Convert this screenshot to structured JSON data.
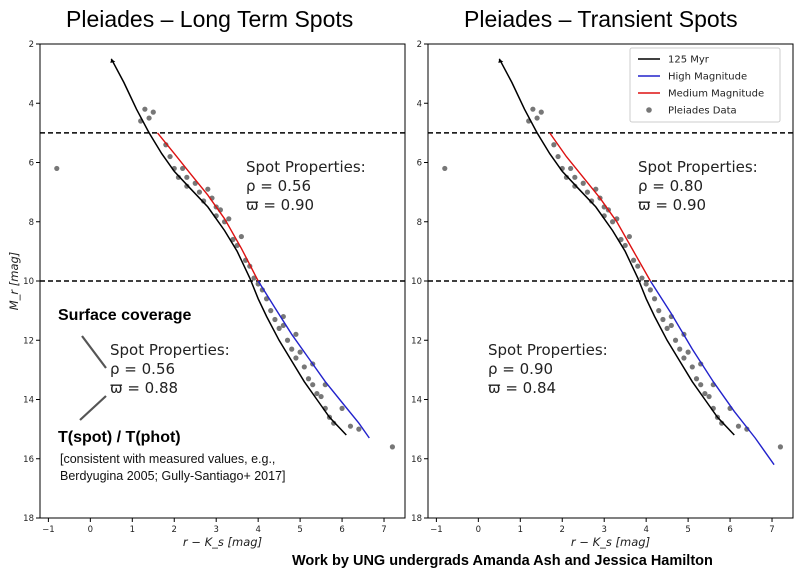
{
  "titles": {
    "left": "Pleiades – Long Term Spots",
    "right": "Pleiades – Transient Spots"
  },
  "annotations": {
    "left_spot": {
      "heading": "Spot Properties:",
      "rho": "ρ = 0.56",
      "varpi": "ϖ = 0.90"
    },
    "right_spot": {
      "heading": "Spot Properties:",
      "rho": "ρ = 0.80",
      "varpi": "ϖ = 0.90"
    },
    "left_lower": {
      "heading": "Spot Properties:",
      "rho": "ρ = 0.56",
      "varpi": "ϖ = 0.88"
    },
    "right_lower": {
      "heading": "Spot Properties:",
      "rho": "ρ = 0.90",
      "varpi": "ϖ = 0.84"
    },
    "surface_coverage": "Surface coverage",
    "temp_ratio": "T(spot) / T(phot)",
    "note_line1": "[consistent with measured values, e.g.,",
    "note_line2": "Berdyugina 2005; Gully-Santiago+ 2017]",
    "credit": "Work by UNG undergrads Amanda Ash and Jessica Hamilton"
  },
  "colors": {
    "isochrone": "#000000",
    "high": "#2222cc",
    "medium": "#dd1111",
    "points": "#777777",
    "frame": "#000000"
  },
  "chart_data": [
    {
      "type": "line",
      "title": "Pleiades – Long Term Spots",
      "xlabel": "r − K_s [mag]",
      "ylabel": "M_r [mag]",
      "xlim": [
        -1.2,
        7.5
      ],
      "ylim": [
        18,
        2
      ],
      "y_inverted": true,
      "xticks": [
        -1,
        0,
        1,
        2,
        3,
        4,
        5,
        6,
        7
      ],
      "yticks": [
        2,
        4,
        6,
        8,
        10,
        12,
        14,
        16,
        18
      ],
      "hlines": [
        5,
        10
      ],
      "legend": false,
      "series": [
        {
          "key": "iso",
          "style": "isochrone",
          "x": [
            0.5,
            0.8,
            1.1,
            1.4,
            1.7,
            2.0,
            2.4,
            2.8,
            3.2,
            3.5,
            3.8,
            4.0,
            4.2,
            4.5,
            4.8,
            5.1,
            5.4,
            5.7,
            6.1
          ],
          "y": [
            2.5,
            3.3,
            4.2,
            5.0,
            5.7,
            6.3,
            6.9,
            7.5,
            8.3,
            9.0,
            9.9,
            10.6,
            11.2,
            12.0,
            12.7,
            13.4,
            14.0,
            14.6,
            15.2
          ]
        },
        {
          "key": "medium",
          "style": "medium",
          "x": [
            1.6,
            2.0,
            2.4,
            2.8,
            3.2,
            3.6,
            4.0
          ],
          "y": [
            5.0,
            5.7,
            6.4,
            7.1,
            7.9,
            8.9,
            10.0
          ]
        },
        {
          "key": "high",
          "style": "high",
          "x": [
            4.0,
            4.4,
            4.8,
            5.2,
            5.6,
            6.0,
            6.4,
            6.65
          ],
          "y": [
            10.0,
            10.9,
            11.8,
            12.6,
            13.4,
            14.1,
            14.8,
            15.3
          ]
        }
      ],
      "scatter": {
        "x": [
          1.2,
          1.3,
          1.4,
          1.5,
          1.8,
          1.9,
          2.0,
          2.1,
          2.2,
          2.3,
          2.3,
          2.5,
          2.6,
          2.7,
          2.8,
          2.9,
          3.0,
          3.0,
          3.1,
          3.2,
          3.3,
          3.4,
          3.5,
          3.6,
          3.7,
          3.8,
          3.9,
          4.0,
          4.1,
          4.2,
          4.3,
          4.4,
          4.5,
          4.6,
          4.7,
          4.8,
          4.9,
          5.0,
          5.1,
          5.2,
          5.3,
          5.4,
          5.5,
          5.6,
          5.7,
          5.8,
          6.0,
          6.2,
          6.4,
          4.6,
          4.9,
          5.3,
          5.6,
          -0.8,
          7.2
        ],
        "y": [
          4.6,
          4.2,
          4.5,
          4.3,
          5.4,
          5.8,
          6.2,
          6.5,
          6.2,
          6.5,
          6.8,
          6.7,
          7.0,
          7.3,
          6.9,
          7.2,
          7.5,
          7.8,
          7.6,
          8.0,
          7.9,
          8.6,
          8.8,
          8.5,
          9.3,
          9.5,
          9.9,
          10.1,
          10.3,
          10.6,
          11.0,
          11.3,
          11.6,
          11.5,
          12.0,
          12.3,
          12.6,
          12.4,
          12.9,
          13.3,
          13.5,
          13.8,
          13.9,
          14.3,
          14.6,
          14.8,
          14.3,
          14.9,
          15.0,
          11.2,
          11.8,
          12.8,
          13.5,
          6.2,
          15.6
        ]
      }
    },
    {
      "type": "line",
      "title": "Pleiades – Transient Spots",
      "xlabel": "r − K_s [mag]",
      "ylabel": "",
      "xlim": [
        -1.2,
        7.5
      ],
      "ylim": [
        18,
        2
      ],
      "y_inverted": true,
      "xticks": [
        -1,
        0,
        1,
        2,
        3,
        4,
        5,
        6,
        7
      ],
      "yticks": [
        2,
        4,
        6,
        8,
        10,
        12,
        14,
        16,
        18
      ],
      "hlines": [
        5,
        10
      ],
      "legend": true,
      "legend_position": "top-right",
      "legend_entries": [
        {
          "label": "125 Myr",
          "kind": "line",
          "color_key": "isochrone"
        },
        {
          "label": "High Magnitude",
          "kind": "line",
          "color_key": "high"
        },
        {
          "label": "Medium Magnitude",
          "kind": "line",
          "color_key": "medium"
        },
        {
          "label": "Pleiades Data",
          "kind": "point",
          "color_key": "points"
        }
      ],
      "series": [
        {
          "key": "iso",
          "style": "isochrone",
          "x": [
            0.5,
            0.8,
            1.1,
            1.4,
            1.7,
            2.0,
            2.4,
            2.8,
            3.2,
            3.5,
            3.8,
            4.0,
            4.2,
            4.5,
            4.8,
            5.1,
            5.4,
            5.7,
            6.1
          ],
          "y": [
            2.5,
            3.3,
            4.2,
            5.0,
            5.7,
            6.3,
            6.9,
            7.5,
            8.3,
            9.0,
            9.9,
            10.6,
            11.2,
            12.0,
            12.7,
            13.4,
            14.0,
            14.6,
            15.2
          ]
        },
        {
          "key": "medium",
          "style": "medium",
          "x": [
            1.7,
            2.1,
            2.5,
            2.9,
            3.3,
            3.7,
            4.1
          ],
          "y": [
            5.0,
            5.8,
            6.5,
            7.2,
            8.0,
            9.0,
            10.0
          ]
        },
        {
          "key": "high",
          "style": "high",
          "x": [
            4.1,
            4.6,
            5.1,
            5.6,
            6.1,
            6.6,
            7.05
          ],
          "y": [
            10.0,
            11.1,
            12.3,
            13.4,
            14.4,
            15.3,
            16.2
          ]
        }
      ],
      "scatter": {
        "x": [
          1.2,
          1.3,
          1.4,
          1.5,
          1.8,
          1.9,
          2.0,
          2.1,
          2.2,
          2.3,
          2.3,
          2.5,
          2.6,
          2.7,
          2.8,
          2.9,
          3.0,
          3.0,
          3.1,
          3.2,
          3.3,
          3.4,
          3.5,
          3.6,
          3.7,
          3.8,
          3.9,
          4.0,
          4.1,
          4.2,
          4.3,
          4.4,
          4.5,
          4.6,
          4.7,
          4.8,
          4.9,
          5.0,
          5.1,
          5.2,
          5.3,
          5.4,
          5.5,
          5.6,
          5.7,
          5.8,
          6.0,
          6.2,
          6.4,
          4.6,
          4.9,
          5.3,
          5.6,
          -0.8,
          7.2
        ],
        "y": [
          4.6,
          4.2,
          4.5,
          4.3,
          5.4,
          5.8,
          6.2,
          6.5,
          6.2,
          6.5,
          6.8,
          6.7,
          7.0,
          7.3,
          6.9,
          7.2,
          7.5,
          7.8,
          7.6,
          8.0,
          7.9,
          8.6,
          8.8,
          8.5,
          9.3,
          9.5,
          9.9,
          10.1,
          10.3,
          10.6,
          11.0,
          11.3,
          11.6,
          11.5,
          12.0,
          12.3,
          12.6,
          12.4,
          12.9,
          13.3,
          13.5,
          13.8,
          13.9,
          14.3,
          14.6,
          14.8,
          14.3,
          14.9,
          15.0,
          11.2,
          11.8,
          12.8,
          13.5,
          6.2,
          15.6
        ]
      }
    }
  ]
}
